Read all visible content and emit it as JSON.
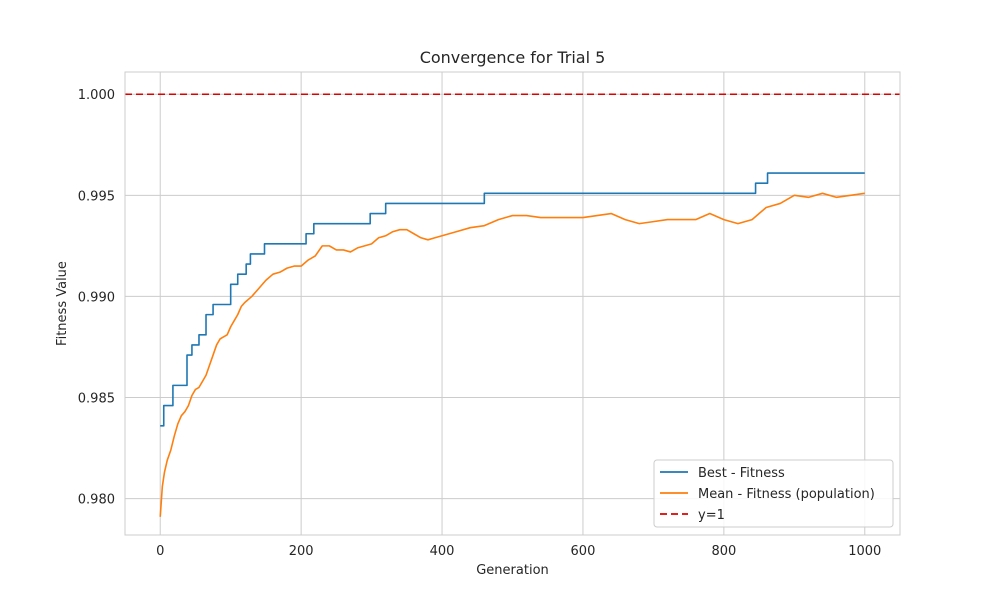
{
  "chart_data": {
    "type": "line",
    "title": "Convergence for Trial 5",
    "xlabel": "Generation",
    "ylabel": "Fitness Value",
    "xlim": [
      -50,
      1050
    ],
    "ylim": [
      0.9782,
      1.0011
    ],
    "xticks": [
      0,
      200,
      400,
      600,
      800,
      1000
    ],
    "xtick_labels": [
      "0",
      "200",
      "400",
      "600",
      "800",
      "1000"
    ],
    "yticks": [
      0.98,
      0.985,
      0.99,
      0.995,
      1.0
    ],
    "ytick_labels": [
      "0.980",
      "0.985",
      "0.990",
      "0.995",
      "1.000"
    ],
    "grid": true,
    "legend_position": "lower-right",
    "series": [
      {
        "name": "Best - Fitness",
        "color": "#1f77b4",
        "style": "step",
        "x": [
          0,
          5,
          5,
          18,
          18,
          38,
          38,
          45,
          45,
          55,
          55,
          65,
          65,
          75,
          75,
          100,
          100,
          110,
          110,
          122,
          122,
          128,
          128,
          148,
          148,
          207,
          207,
          218,
          218,
          298,
          298,
          320,
          320,
          460,
          460,
          845,
          845,
          862,
          862,
          1000
        ],
        "y": [
          0.9836,
          0.9836,
          0.9846,
          0.9846,
          0.9856,
          0.9856,
          0.9871,
          0.9871,
          0.9876,
          0.9876,
          0.9881,
          0.9881,
          0.9891,
          0.9891,
          0.9896,
          0.9896,
          0.9906,
          0.9906,
          0.9911,
          0.9911,
          0.9916,
          0.9916,
          0.9921,
          0.9921,
          0.9926,
          0.9926,
          0.9931,
          0.9931,
          0.9936,
          0.9936,
          0.9941,
          0.9941,
          0.9946,
          0.9946,
          0.9951,
          0.9951,
          0.9956,
          0.9956,
          0.9961,
          0.9961
        ]
      },
      {
        "name": "Mean - Fitness (population)",
        "color": "#ff7f0e",
        "style": "line",
        "x": [
          0,
          3,
          6,
          10,
          15,
          20,
          25,
          30,
          35,
          40,
          45,
          50,
          55,
          60,
          65,
          70,
          75,
          80,
          85,
          90,
          95,
          100,
          105,
          110,
          115,
          120,
          130,
          140,
          150,
          160,
          170,
          180,
          190,
          200,
          210,
          220,
          230,
          240,
          250,
          260,
          270,
          280,
          290,
          300,
          310,
          320,
          330,
          340,
          350,
          360,
          370,
          380,
          390,
          400,
          420,
          440,
          460,
          480,
          500,
          520,
          540,
          560,
          580,
          600,
          620,
          640,
          660,
          680,
          700,
          720,
          740,
          760,
          780,
          800,
          820,
          840,
          860,
          880,
          900,
          920,
          940,
          960,
          980,
          1000
        ],
        "y": [
          0.9791,
          0.9806,
          0.9813,
          0.9819,
          0.9824,
          0.9831,
          0.9837,
          0.9841,
          0.9843,
          0.9846,
          0.9851,
          0.9854,
          0.9855,
          0.9858,
          0.9861,
          0.9866,
          0.9871,
          0.9876,
          0.9879,
          0.988,
          0.9881,
          0.9885,
          0.9888,
          0.9891,
          0.9895,
          0.9897,
          0.99,
          0.9904,
          0.9908,
          0.9911,
          0.9912,
          0.9914,
          0.9915,
          0.9915,
          0.9918,
          0.992,
          0.9925,
          0.9925,
          0.9923,
          0.9923,
          0.9922,
          0.9924,
          0.9925,
          0.9926,
          0.9929,
          0.993,
          0.9932,
          0.9933,
          0.9933,
          0.9931,
          0.9929,
          0.9928,
          0.9929,
          0.993,
          0.9932,
          0.9934,
          0.9935,
          0.9938,
          0.994,
          0.994,
          0.9939,
          0.9939,
          0.9939,
          0.9939,
          0.994,
          0.9941,
          0.9938,
          0.9936,
          0.9937,
          0.9938,
          0.9938,
          0.9938,
          0.9941,
          0.9938,
          0.9936,
          0.9938,
          0.9944,
          0.9946,
          0.995,
          0.9949,
          0.9951,
          0.9949,
          0.995,
          0.9951
        ]
      },
      {
        "name": "y=1",
        "color": "#dd0000",
        "style": "dashed",
        "x": [
          -50,
          1050
        ],
        "y": [
          1.0,
          1.0
        ]
      }
    ]
  }
}
